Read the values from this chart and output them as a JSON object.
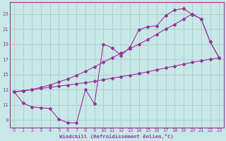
{
  "xlabel": "Windchill (Refroidissement éolien,°C)",
  "background_color": "#c8e8e8",
  "grid_color": "#aacccc",
  "line_color": "#993399",
  "x_values": [
    0,
    1,
    2,
    3,
    4,
    5,
    6,
    7,
    8,
    9,
    10,
    11,
    12,
    13,
    14,
    15,
    16,
    17,
    18,
    19,
    20,
    21,
    22,
    23
  ],
  "line1_y": [
    12.7,
    11.2,
    10.7,
    10.6,
    10.5,
    9.1,
    8.6,
    8.6,
    13.0,
    11.1,
    19.0,
    18.5,
    17.5,
    18.6,
    20.9,
    21.3,
    21.4,
    22.8,
    23.5,
    23.7,
    22.9,
    22.3,
    19.3,
    17.2
  ],
  "line2_y": [
    12.7,
    12.8,
    13.0,
    13.3,
    13.6,
    14.0,
    14.4,
    14.9,
    15.4,
    16.0,
    16.6,
    17.2,
    17.8,
    18.4,
    19.0,
    19.6,
    20.3,
    21.0,
    21.6,
    22.3,
    23.0,
    22.3,
    19.3,
    17.2
  ],
  "line3_y": [
    12.7,
    12.85,
    13.0,
    13.15,
    13.3,
    13.45,
    13.6,
    13.75,
    13.9,
    14.1,
    14.3,
    14.5,
    14.7,
    14.9,
    15.1,
    15.35,
    15.6,
    15.85,
    16.1,
    16.35,
    16.6,
    16.8,
    17.0,
    17.2
  ],
  "ylim": [
    8.0,
    24.5
  ],
  "xlim": [
    -0.5,
    23.5
  ],
  "yticks": [
    9,
    11,
    13,
    15,
    17,
    19,
    21,
    23
  ],
  "xticks": [
    0,
    1,
    2,
    3,
    4,
    5,
    6,
    7,
    8,
    9,
    10,
    11,
    12,
    13,
    14,
    15,
    16,
    17,
    18,
    19,
    20,
    21,
    22,
    23
  ]
}
